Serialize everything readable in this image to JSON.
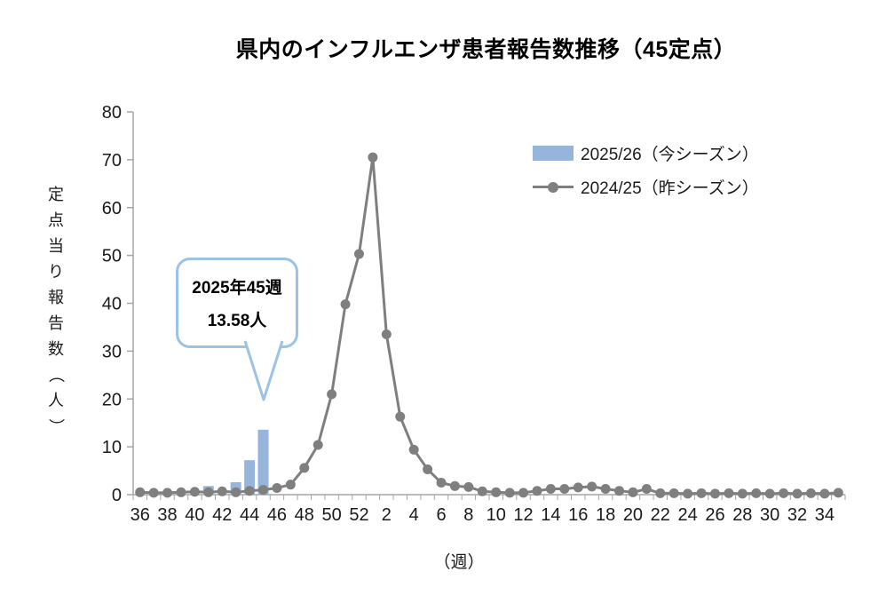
{
  "title": "県内のインフルエンザ患者報告数推移（45定点）",
  "y_axis": {
    "label": "定点当り報告数（人）",
    "ticks": [
      0,
      10,
      20,
      30,
      40,
      50,
      60,
      70,
      80
    ]
  },
  "x_axis": {
    "label": "（週）"
  },
  "legend": {
    "items": [
      {
        "label": "2025/26（今シーズン）",
        "type": "bar",
        "color": "#97b5da"
      },
      {
        "label": "2024/25（昨シーズン）",
        "type": "line",
        "color": "#7f7f7f"
      }
    ]
  },
  "callout": {
    "line1": "2025年45週",
    "line2": "13.58人",
    "target_week": 45,
    "border_color": "#9cc2e5"
  },
  "colors": {
    "bar": "#97b5da",
    "line": "#7f7f7f",
    "axis": "#a6a6a6",
    "text": "#1a1a1a"
  },
  "chart_data": {
    "type": "bar+line",
    "title": "県内のインフルエンザ患者報告数推移（45定点）",
    "xlabel": "（週）",
    "ylabel": "定点当り報告数（人）",
    "ylim": [
      0,
      80
    ],
    "grid": false,
    "legend_position": "top-right-inside",
    "x_tick_label_every": 2,
    "categories": [
      36,
      37,
      38,
      39,
      40,
      41,
      42,
      43,
      44,
      45,
      46,
      47,
      48,
      49,
      50,
      51,
      52,
      1,
      2,
      3,
      4,
      5,
      6,
      7,
      8,
      9,
      10,
      11,
      12,
      13,
      14,
      15,
      16,
      17,
      18,
      19,
      20,
      21,
      22,
      23,
      24,
      25,
      26,
      27,
      28,
      29,
      30,
      31,
      32,
      33,
      34,
      35
    ],
    "series": [
      {
        "name": "2025/26（今シーズン）",
        "type": "bar",
        "color": "#97b5da",
        "values": [
          0,
          0,
          0,
          0,
          0,
          1.8,
          0,
          2.6,
          7.2,
          13.58,
          0,
          0,
          0,
          0,
          0,
          0,
          0,
          0,
          0,
          0,
          0,
          0,
          0,
          0,
          0,
          0,
          0,
          0,
          0,
          0,
          0,
          0,
          0,
          0,
          0,
          0,
          0,
          0,
          0,
          0,
          0,
          0,
          0,
          0,
          0,
          0,
          0,
          0,
          0,
          0,
          0,
          0
        ]
      },
      {
        "name": "2024/25（昨シーズン）",
        "type": "line",
        "color": "#7f7f7f",
        "values": [
          0.5,
          0.4,
          0.4,
          0.5,
          0.6,
          0.5,
          0.7,
          0.5,
          0.8,
          1.0,
          1.4,
          2.1,
          5.6,
          10.4,
          21.0,
          39.8,
          50.3,
          70.5,
          33.5,
          16.3,
          9.4,
          5.3,
          2.5,
          1.8,
          1.6,
          0.7,
          0.5,
          0.4,
          0.4,
          0.8,
          1.2,
          1.2,
          1.5,
          1.7,
          1.2,
          0.8,
          0.5,
          1.2,
          0.3,
          0.3,
          0.2,
          0.3,
          0.2,
          0.3,
          0.2,
          0.3,
          0.2,
          0.3,
          0.2,
          0.3,
          0.2,
          0.4
        ]
      }
    ]
  }
}
